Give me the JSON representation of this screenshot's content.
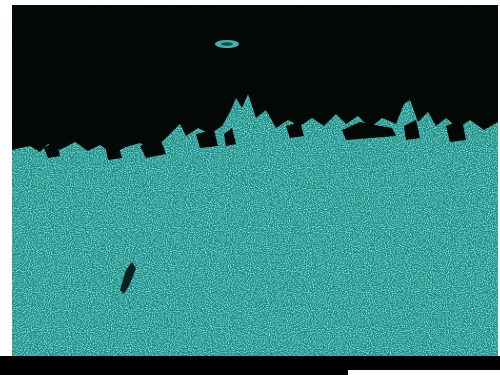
{
  "image": {
    "kind": "elemental-distribution-map",
    "colors": {
      "background": "#ffffff",
      "void": "#020806",
      "phase_base": "#1d8c86",
      "phase_light": "#4fd0c6",
      "phase_dark": "#0e4f4c",
      "scale_bar": "#000000"
    }
  }
}
